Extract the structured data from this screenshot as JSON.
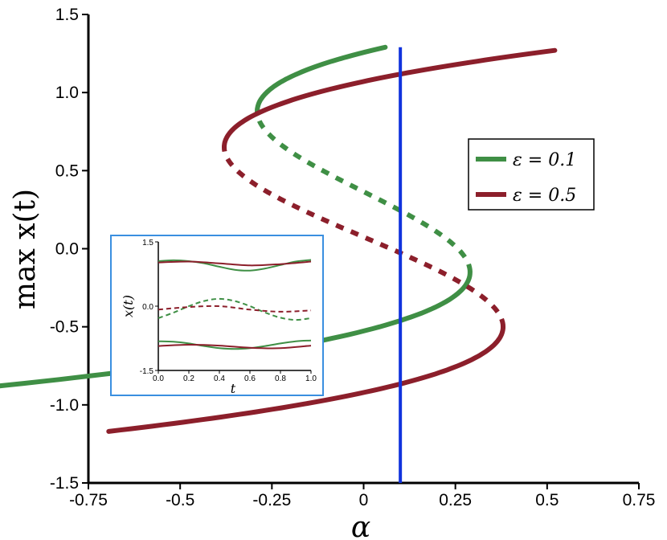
{
  "chart_data": {
    "type": "line",
    "xlabel": "α",
    "ylabel": "max x(t)",
    "xlim": [
      -0.75,
      0.75
    ],
    "ylim": [
      -1.5,
      1.5
    ],
    "xticks": [
      "-0.75",
      "-0.5",
      "-0.25",
      "0",
      "0.25",
      "0.5",
      "0.75"
    ],
    "xtick_values": [
      -0.75,
      -0.5,
      -0.25,
      0,
      0.25,
      0.5,
      0.75
    ],
    "yticks": [
      "-1.5",
      "-1.0",
      "-0.5",
      "0.0",
      "0.5",
      "1.0",
      "1.5"
    ],
    "ytick_values": [
      -1.5,
      -1.0,
      -0.5,
      0.0,
      0.5,
      1.0,
      1.5
    ],
    "legend_position": "right",
    "vertical_line": {
      "x": 0.1,
      "color": "#1133dd"
    },
    "series": [
      {
        "name": "ε = 0.1",
        "color": "#3f8f45",
        "eps": 0.1
      },
      {
        "name": "ε = 0.5",
        "color": "#8c1f2b",
        "eps": 0.5
      }
    ],
    "line_styles": {
      "stable": "solid",
      "unstable": "dashed"
    },
    "inset": {
      "xlabel": "t",
      "ylabel": "x(t)",
      "xlim": [
        0,
        1
      ],
      "ylim": [
        -1.5,
        1.5
      ],
      "xticks": [
        "0.0",
        "0.2",
        "0.4",
        "0.6",
        "0.8",
        "1.0"
      ],
      "xtick_values": [
        0,
        0.2,
        0.4,
        0.6,
        0.8,
        1.0
      ],
      "yticks": [
        "-1.5",
        "0.0",
        "1.5"
      ],
      "ytick_values": [
        -1.5,
        0.0,
        1.5
      ],
      "border_color": "#3a8fe0",
      "series": [
        {
          "color": "#3f8f45",
          "style": "solid",
          "x": [
            0,
            0.1,
            0.2,
            0.3,
            0.4,
            0.5,
            0.6,
            0.7,
            0.8,
            0.9,
            1.0
          ],
          "y": [
            1.05,
            1.07,
            1.05,
            1.0,
            0.92,
            0.85,
            0.83,
            0.88,
            0.96,
            1.04,
            1.08
          ]
        },
        {
          "color": "#8c1f2b",
          "style": "solid",
          "x": [
            0,
            0.2,
            0.4,
            0.6,
            0.8,
            1.0
          ],
          "y": [
            1.02,
            1.04,
            1.0,
            0.95,
            0.98,
            1.04
          ]
        },
        {
          "color": "#3f8f45",
          "style": "dashed",
          "x": [
            0,
            0.1,
            0.2,
            0.3,
            0.4,
            0.5,
            0.6,
            0.7,
            0.8,
            0.9,
            1.0
          ],
          "y": [
            -0.28,
            -0.15,
            0.0,
            0.12,
            0.17,
            0.12,
            0.0,
            -0.15,
            -0.27,
            -0.32,
            -0.28
          ]
        },
        {
          "color": "#8c1f2b",
          "style": "dashed",
          "x": [
            0,
            0.2,
            0.4,
            0.6,
            0.8,
            1.0
          ],
          "y": [
            -0.08,
            -0.02,
            0.0,
            -0.08,
            -0.13,
            -0.1
          ]
        },
        {
          "color": "#3f8f45",
          "style": "solid",
          "x": [
            0,
            0.1,
            0.2,
            0.3,
            0.4,
            0.5,
            0.6,
            0.7,
            0.8,
            0.9,
            1.0
          ],
          "y": [
            -0.82,
            -0.83,
            -0.87,
            -0.93,
            -0.98,
            -1.0,
            -0.98,
            -0.93,
            -0.87,
            -0.82,
            -0.8
          ]
        },
        {
          "color": "#8c1f2b",
          "style": "solid",
          "x": [
            0,
            0.2,
            0.4,
            0.6,
            0.8,
            1.0
          ],
          "y": [
            -0.93,
            -0.9,
            -0.92,
            -0.97,
            -0.98,
            -0.92
          ]
        }
      ]
    }
  }
}
